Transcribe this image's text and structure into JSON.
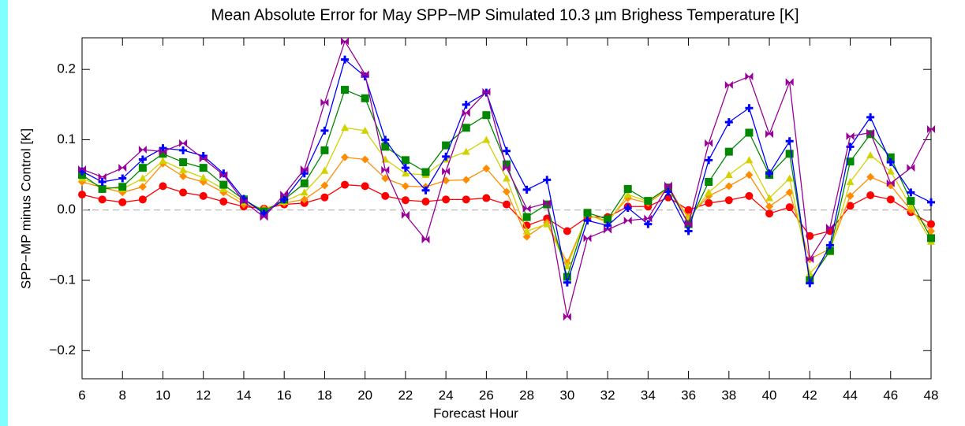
{
  "chart_data": {
    "type": "line",
    "title": "Mean Absolute Error for May SPP−MP Simulated 10.3 µm Brighess Temperature [K]",
    "x_label": "Forecast Hour",
    "y_label": "SPP−MP minus Control [K]",
    "x": [
      6,
      7,
      8,
      9,
      10,
      11,
      12,
      13,
      14,
      15,
      16,
      17,
      18,
      19,
      20,
      21,
      22,
      23,
      24,
      25,
      26,
      27,
      28,
      29,
      30,
      31,
      32,
      33,
      34,
      35,
      36,
      37,
      38,
      39,
      40,
      41,
      42,
      43,
      44,
      45,
      46,
      47,
      48
    ],
    "xlim": [
      6,
      48
    ],
    "xticks": [
      6,
      8,
      10,
      12,
      14,
      16,
      18,
      20,
      22,
      24,
      26,
      28,
      30,
      32,
      34,
      36,
      38,
      40,
      42,
      44,
      46,
      48
    ],
    "ylim": [
      -0.24,
      0.245
    ],
    "yticks": [
      {
        "value": -0.2,
        "label": "−0.2"
      },
      {
        "value": -0.1,
        "label": "−0.1"
      },
      {
        "value": 0,
        "label": "0.0"
      },
      0.1,
      0.2
    ],
    "grid": false,
    "zero_line": true,
    "series": [
      {
        "color": "#ff0000",
        "marker": "circle",
        "values": [
          0.022,
          0.015,
          0.011,
          0.015,
          0.034,
          0.025,
          0.02,
          0.012,
          0.005,
          0.002,
          0.008,
          0.01,
          0.018,
          0.036,
          0.034,
          0.02,
          0.014,
          0.012,
          0.015,
          0.015,
          0.017,
          0.008,
          -0.022,
          -0.012,
          -0.03,
          -0.01,
          -0.01,
          0.005,
          0.005,
          0.018,
          0.0,
          0.01,
          0.014,
          0.02,
          -0.005,
          0.004,
          -0.037,
          -0.03,
          0.006,
          0.021,
          0.015,
          -0.003,
          -0.02
        ]
      },
      {
        "color": "#ff8c00",
        "marker": "diamond",
        "values": [
          0.04,
          0.032,
          0.025,
          0.033,
          0.066,
          0.048,
          0.04,
          0.025,
          0.008,
          0.002,
          0.01,
          0.015,
          0.035,
          0.075,
          0.072,
          0.045,
          0.034,
          0.033,
          0.042,
          0.043,
          0.059,
          0.026,
          -0.038,
          -0.018,
          -0.075,
          -0.008,
          -0.015,
          0.017,
          0.01,
          0.03,
          -0.01,
          0.02,
          0.034,
          0.05,
          0.005,
          0.025,
          -0.07,
          -0.055,
          0.02,
          0.047,
          0.035,
          0.0,
          -0.03
        ]
      },
      {
        "color": "#d2d200",
        "marker": "triangle",
        "values": [
          0.045,
          0.033,
          0.03,
          0.045,
          0.07,
          0.057,
          0.046,
          0.03,
          0.012,
          0.0,
          0.012,
          0.025,
          0.056,
          0.117,
          0.113,
          0.072,
          0.052,
          0.05,
          0.072,
          0.083,
          0.1,
          0.045,
          -0.03,
          -0.02,
          -0.08,
          -0.006,
          -0.018,
          0.022,
          0.012,
          0.032,
          -0.012,
          0.025,
          0.05,
          0.071,
          0.017,
          0.045,
          -0.09,
          -0.06,
          0.04,
          0.078,
          0.055,
          0.005,
          -0.045
        ]
      },
      {
        "color": "#008800",
        "marker": "square",
        "values": [
          0.05,
          0.03,
          0.033,
          0.06,
          0.08,
          0.068,
          0.06,
          0.036,
          0.015,
          -0.002,
          0.015,
          0.038,
          0.085,
          0.171,
          0.159,
          0.09,
          0.071,
          0.054,
          0.092,
          0.117,
          0.135,
          0.065,
          -0.01,
          0.008,
          -0.095,
          -0.004,
          -0.013,
          0.03,
          0.013,
          0.032,
          -0.02,
          0.04,
          0.083,
          0.11,
          0.05,
          0.08,
          -0.1,
          -0.058,
          0.069,
          0.108,
          0.075,
          0.013,
          -0.04
        ]
      },
      {
        "color": "#0000ff",
        "marker": "plus",
        "values": [
          0.055,
          0.04,
          0.045,
          0.072,
          0.088,
          0.085,
          0.077,
          0.052,
          0.016,
          -0.005,
          0.015,
          0.052,
          0.113,
          0.214,
          0.19,
          0.1,
          0.06,
          0.028,
          0.076,
          0.15,
          0.167,
          0.084,
          0.029,
          0.043,
          -0.103,
          -0.015,
          -0.022,
          0.003,
          -0.02,
          0.026,
          -0.03,
          0.071,
          0.125,
          0.145,
          0.052,
          0.098,
          -0.104,
          -0.05,
          0.09,
          0.132,
          0.068,
          0.025,
          0.011
        ]
      },
      {
        "color": "#990099",
        "marker": "bowtie",
        "values": [
          0.058,
          0.047,
          0.06,
          0.086,
          0.083,
          0.095,
          0.073,
          0.05,
          0.012,
          -0.01,
          0.022,
          0.058,
          0.153,
          0.24,
          0.193,
          0.057,
          -0.007,
          -0.042,
          0.055,
          0.138,
          0.168,
          0.06,
          0.002,
          0.01,
          -0.152,
          -0.04,
          -0.028,
          -0.015,
          -0.012,
          0.035,
          -0.02,
          0.095,
          0.178,
          0.19,
          0.108,
          0.182,
          -0.07,
          -0.025,
          0.105,
          0.11,
          0.038,
          0.06,
          0.115
        ]
      }
    ]
  }
}
